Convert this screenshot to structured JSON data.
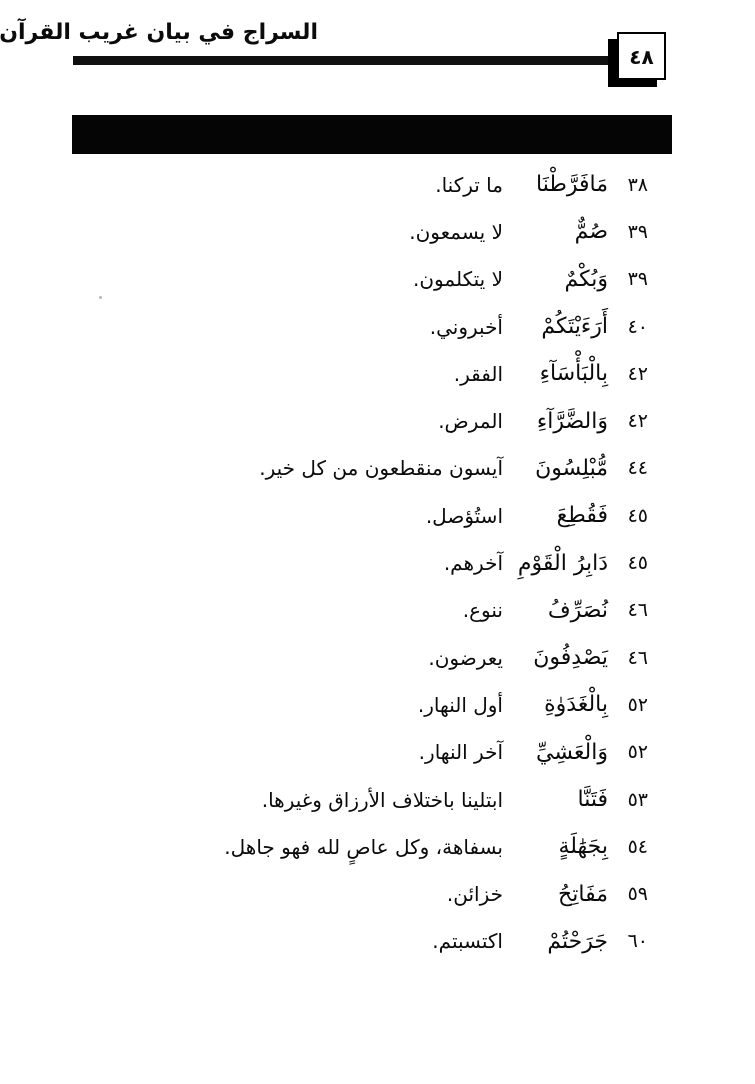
{
  "page": {
    "title": "السراج في بيان غريب القرآن",
    "page_number": "٤٨"
  },
  "table": {
    "rows": [
      {
        "verse": "٣٨",
        "word": "مَافَرَّطْنَا",
        "meaning": "ما تركنا."
      },
      {
        "verse": "٣٩",
        "word": "صُمٌّ",
        "meaning": "لا يسمعون."
      },
      {
        "verse": "٣٩",
        "word": "وَبُكْمٌ",
        "meaning": "لا يتكلمون."
      },
      {
        "verse": "٤٠",
        "word": "أَرَءَيْتَكُمْ",
        "meaning": "أخبروني."
      },
      {
        "verse": "٤٢",
        "word": "بِالْبَأْسَآءِ",
        "meaning": "الفقر."
      },
      {
        "verse": "٤٢",
        "word": "وَالضَّرَّآءِ",
        "meaning": "المرض."
      },
      {
        "verse": "٤٤",
        "word": "مُّبْلِسُونَ",
        "meaning": "آيسون منقطعون من كل خير."
      },
      {
        "verse": "٤٥",
        "word": "فَقُطِعَ",
        "meaning": "استُؤصل."
      },
      {
        "verse": "٤٥",
        "word": "دَابِرُ الْقَوْمِ",
        "meaning": "آخرهم."
      },
      {
        "verse": "٤٦",
        "word": "نُصَرِّفُ",
        "meaning": "ننوع."
      },
      {
        "verse": "٤٦",
        "word": "يَصْدِفُونَ",
        "meaning": "يعرضون."
      },
      {
        "verse": "٥٢",
        "word": "بِالْغَدَوٰةِ",
        "meaning": "أول النهار."
      },
      {
        "verse": "٥٢",
        "word": "وَالْعَشِيِّ",
        "meaning": "آخر النهار."
      },
      {
        "verse": "٥٣",
        "word": "فَتَنَّا",
        "meaning": "ابتلينا باختلاف الأرزاق وغيرها."
      },
      {
        "verse": "٥٤",
        "word": "بِجَهَٰلَةٍ",
        "meaning": "بسفاهة، وكل عاصٍ لله فهو جاهل."
      },
      {
        "verse": "٥٩",
        "word": "مَفَاتِحُ",
        "meaning": "خزائن."
      },
      {
        "verse": "٦٠",
        "word": "جَرَحْتُمْ",
        "meaning": "اكتسبتم."
      }
    ]
  }
}
